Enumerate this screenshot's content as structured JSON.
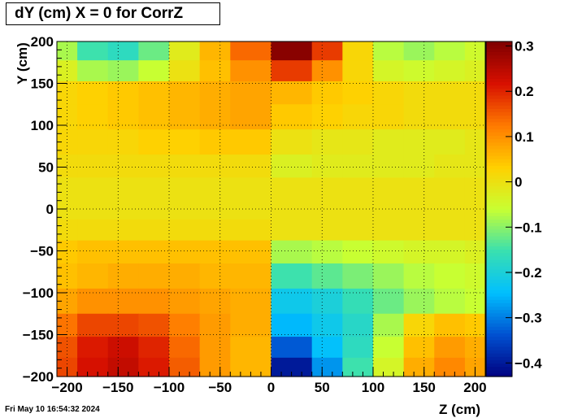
{
  "page": {
    "title": "dY (cm) X = 0 for CorrZ",
    "timestamp": "Fri May 10 16:54:32 2024"
  },
  "chart_data": {
    "type": "heatmap",
    "title": "dY (cm) X = 0 for CorrZ",
    "xlabel": "Z (cm)",
    "ylabel": "Y (cm)",
    "xlim": [
      -210,
      210
    ],
    "ylim": [
      -200,
      200
    ],
    "zlim": [
      -0.43,
      0.31
    ],
    "grid": true,
    "xticks": [
      -200,
      -150,
      -100,
      -50,
      0,
      50,
      100,
      150,
      200
    ],
    "yticks": [
      -200,
      -150,
      -100,
      -50,
      0,
      50,
      100,
      150,
      200
    ],
    "xtick_labels": [
      "−200",
      "−150",
      "−100",
      "−50",
      "0",
      "50",
      "100",
      "150",
      "200"
    ],
    "ytick_labels": [
      "−200",
      "−150",
      "−100",
      "−50",
      "0",
      "50",
      "100",
      "150",
      "200"
    ],
    "colorbar_ticks": [
      0.3,
      0.2,
      0.1,
      0,
      -0.1,
      -0.2,
      -0.3,
      -0.4
    ],
    "colorbar_labels": [
      "0.3",
      "0.2",
      "0.1",
      "0",
      "−0.1",
      "−0.2",
      "−0.3",
      "−0.4"
    ],
    "colormap": [
      "#00007f",
      "#0050d0",
      "#00bfff",
      "#39e0b0",
      "#c8ff32",
      "#ffd000",
      "#ff7a00",
      "#d81000",
      "#7f0000"
    ],
    "z": [
      -205,
      -175,
      -145,
      -115,
      -85,
      -55,
      -25,
      25,
      55,
      85,
      115,
      145,
      175,
      205
    ],
    "y": [
      190,
      165,
      140,
      110,
      80,
      50,
      25,
      0,
      -25,
      -50,
      -80,
      -110,
      -140,
      -165,
      -190
    ],
    "values": [
      [
        -0.08,
        -0.15,
        -0.17,
        -0.12,
        -0.02,
        0.06,
        0.14,
        0.3,
        0.18,
        0.02,
        -0.07,
        -0.09,
        -0.07,
        -0.05
      ],
      [
        -0.03,
        -0.08,
        -0.09,
        -0.06,
        0.0,
        0.05,
        0.1,
        0.18,
        0.1,
        0.02,
        -0.04,
        -0.05,
        -0.04,
        -0.03
      ],
      [
        0.02,
        0.03,
        0.04,
        0.05,
        0.06,
        0.07,
        0.08,
        0.06,
        0.04,
        0.03,
        0.02,
        0.01,
        0.01,
        0.01
      ],
      [
        0.02,
        0.03,
        0.04,
        0.05,
        0.06,
        0.07,
        0.08,
        0.04,
        0.03,
        0.02,
        0.02,
        0.01,
        0.01,
        0.01
      ],
      [
        0.02,
        0.02,
        0.02,
        0.03,
        0.03,
        0.04,
        0.04,
        0.0,
        -0.01,
        -0.01,
        -0.02,
        -0.02,
        -0.02,
        -0.01
      ],
      [
        0.01,
        0.01,
        0.01,
        0.01,
        0.01,
        0.01,
        0.01,
        -0.03,
        -0.02,
        -0.02,
        -0.02,
        -0.02,
        -0.01,
        -0.01
      ],
      [
        0.0,
        0.0,
        0.0,
        0.0,
        0.0,
        0.0,
        0.0,
        0.0,
        0.0,
        0.0,
        0.0,
        0.0,
        0.0,
        0.0
      ],
      [
        0.0,
        0.0,
        0.0,
        0.0,
        0.0,
        0.0,
        0.0,
        0.0,
        0.0,
        0.0,
        0.0,
        0.0,
        0.0,
        0.0
      ],
      [
        0.01,
        0.01,
        0.01,
        0.01,
        0.01,
        0.01,
        0.01,
        0.0,
        0.0,
        0.0,
        0.0,
        0.0,
        0.0,
        0.0
      ],
      [
        0.04,
        0.05,
        0.05,
        0.05,
        0.05,
        0.05,
        0.05,
        -0.08,
        -0.07,
        -0.06,
        -0.05,
        -0.04,
        -0.04,
        -0.03
      ],
      [
        0.05,
        0.06,
        0.07,
        0.07,
        0.07,
        0.06,
        0.06,
        -0.15,
        -0.13,
        -0.11,
        -0.09,
        -0.07,
        -0.06,
        -0.05
      ],
      [
        0.08,
        0.1,
        0.1,
        0.1,
        0.09,
        0.08,
        0.07,
        -0.22,
        -0.2,
        -0.16,
        -0.12,
        -0.09,
        -0.07,
        -0.06
      ],
      [
        0.13,
        0.17,
        0.17,
        0.16,
        0.12,
        0.09,
        0.07,
        -0.25,
        -0.22,
        -0.18,
        -0.08,
        0.02,
        0.05,
        0.04
      ],
      [
        0.16,
        0.21,
        0.23,
        0.2,
        0.14,
        0.09,
        0.06,
        -0.33,
        -0.24,
        -0.17,
        -0.06,
        0.05,
        0.09,
        0.07
      ],
      [
        0.17,
        0.22,
        0.24,
        0.21,
        0.15,
        0.09,
        0.06,
        -0.4,
        -0.28,
        -0.15,
        -0.04,
        0.07,
        0.11,
        0.08
      ]
    ]
  }
}
